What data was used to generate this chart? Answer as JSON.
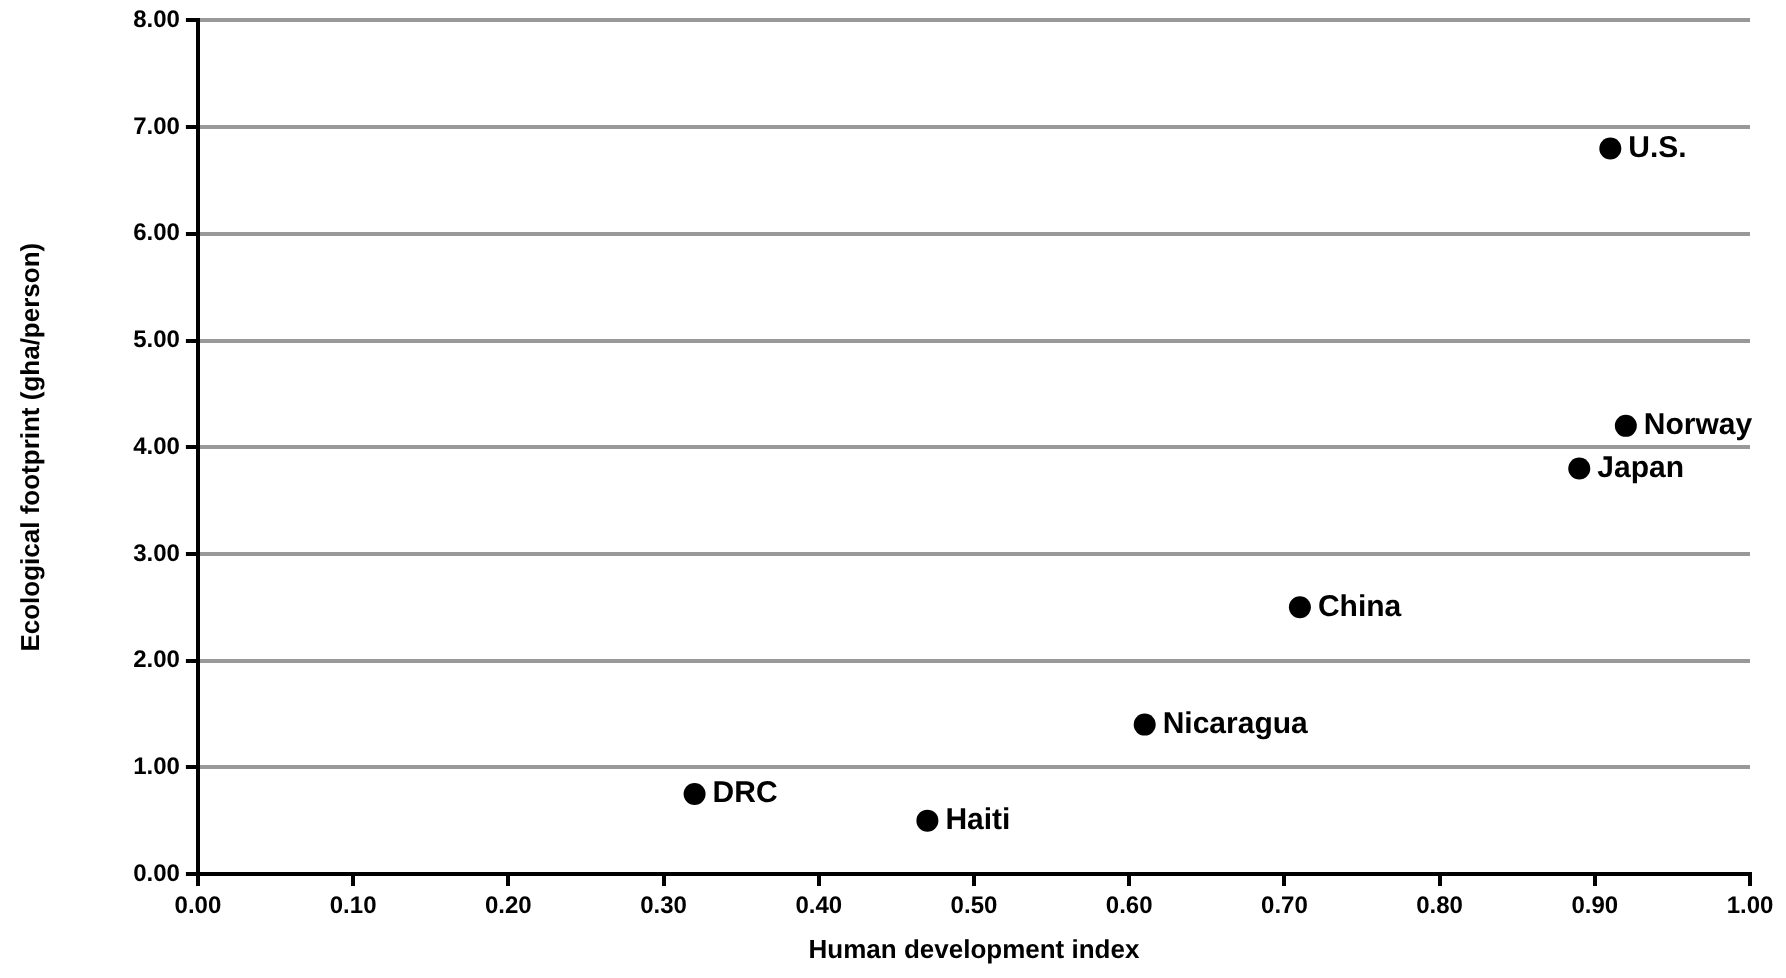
{
  "chart_data": {
    "type": "scatter",
    "xlabel": "Human development index",
    "ylabel": "Ecological footprint (gha/person)",
    "x": [
      0.91,
      0.92,
      0.89,
      0.71,
      0.61,
      0.32,
      0.47
    ],
    "values": [
      6.8,
      4.2,
      3.8,
      2.5,
      1.4,
      0.75,
      0.5
    ],
    "color": "#000000",
    "marker": "circle",
    "xlim": [
      0,
      1
    ],
    "xticks": [
      {
        "value": 0,
        "label": "0.00"
      },
      {
        "value": 0.1,
        "label": "0.10"
      },
      {
        "value": 0.2,
        "label": "0.20"
      },
      {
        "value": 0.3,
        "label": "0.30"
      },
      {
        "value": 0.4,
        "label": "0.40"
      },
      {
        "value": 0.5,
        "label": "0.50"
      },
      {
        "value": 0.6,
        "label": "0.60"
      },
      {
        "value": 0.7,
        "label": "0.70"
      },
      {
        "value": 0.8,
        "label": "0.80"
      },
      {
        "value": 0.9,
        "label": "0.90"
      },
      {
        "value": 1,
        "label": "1.00"
      }
    ],
    "ylim": [
      0,
      8
    ],
    "yticks": [
      {
        "value": 0,
        "label": "0.00"
      },
      {
        "value": 1,
        "label": "1.00"
      },
      {
        "value": 2,
        "label": "2.00"
      },
      {
        "value": 3,
        "label": "3.00"
      },
      {
        "value": 4,
        "label": "4.00"
      },
      {
        "value": 5,
        "label": "5.00"
      },
      {
        "value": 6,
        "label": "6.00"
      },
      {
        "value": 7,
        "label": "7.00"
      },
      {
        "value": 8,
        "label": "8.00"
      }
    ],
    "grid": "y",
    "annotations": [
      {
        "text": "U.S.",
        "x": 0.91,
        "y": 6.8
      },
      {
        "text": "Norway",
        "x": 0.92,
        "y": 4.2
      },
      {
        "text": "Japan",
        "x": 0.89,
        "y": 3.8
      },
      {
        "text": "China",
        "x": 0.71,
        "y": 2.5
      },
      {
        "text": "Nicaragua",
        "x": 0.61,
        "y": 1.4
      },
      {
        "text": "DRC",
        "x": 0.32,
        "y": 0.75
      },
      {
        "text": "Haiti",
        "x": 0.47,
        "y": 0.5
      }
    ]
  }
}
